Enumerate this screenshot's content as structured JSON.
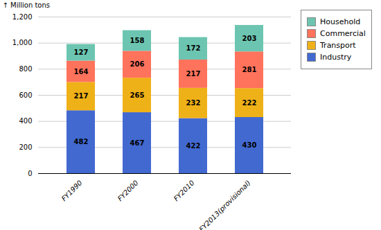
{
  "chart_data": {
    "type": "bar",
    "stacked": true,
    "categories": [
      "FY1990",
      "FY2000",
      "FY2010",
      "FY2013(provisional)"
    ],
    "series": [
      {
        "name": "Industry",
        "values": [
          482,
          467,
          422,
          430
        ]
      },
      {
        "name": "Transport",
        "values": [
          217,
          265,
          232,
          222
        ]
      },
      {
        "name": "Commercial",
        "values": [
          164,
          206,
          217,
          281
        ]
      },
      {
        "name": "Household",
        "values": [
          127,
          158,
          172,
          203
        ]
      }
    ],
    "ylabel": "Million tons",
    "ylim": [
      0,
      1200
    ],
    "yticks": [
      0,
      200,
      400,
      600,
      800,
      {
        "value": 1000,
        "label": "1,000"
      },
      {
        "value": 1200,
        "label": "1,200"
      }
    ],
    "grid": true,
    "legend": "right",
    "data_labels": true
  }
}
